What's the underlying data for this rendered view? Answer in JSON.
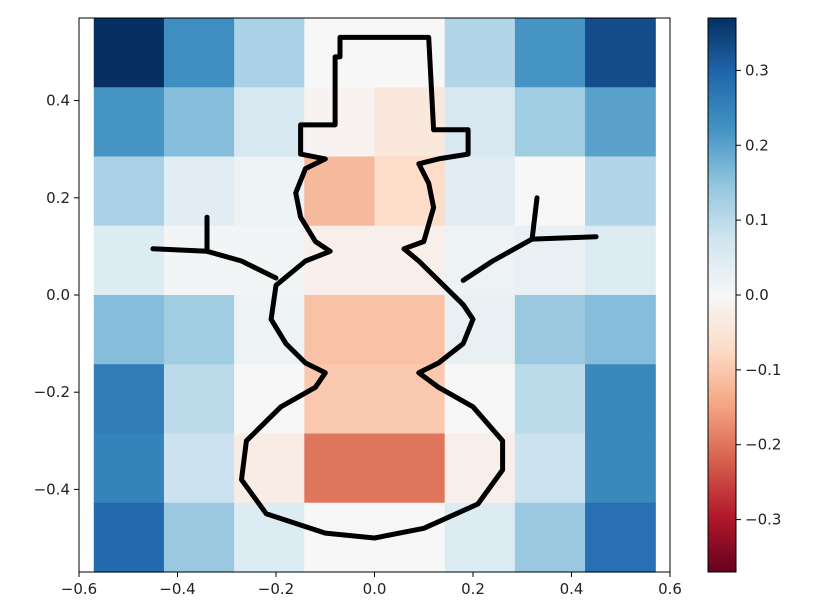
{
  "chart_data": {
    "type": "heatmap",
    "title": "",
    "xlabel": "",
    "ylabel": "",
    "xlim": [
      -0.6,
      0.6
    ],
    "ylim": [
      -0.57,
      0.57
    ],
    "x_ticks": [
      {
        "value": -0.6,
        "label": "−0.6"
      },
      {
        "value": -0.4,
        "label": "−0.4"
      },
      {
        "value": -0.2,
        "label": "−0.2"
      },
      {
        "value": 0.0,
        "label": "0.0"
      },
      {
        "value": 0.2,
        "label": "0.2"
      },
      {
        "value": 0.4,
        "label": "0.4"
      },
      {
        "value": 0.6,
        "label": "0.6"
      }
    ],
    "y_ticks": [
      {
        "value": 0.4,
        "label": "0.4"
      },
      {
        "value": 0.2,
        "label": "0.2"
      },
      {
        "value": 0.0,
        "label": "0.0"
      },
      {
        "value": -0.2,
        "label": "−0.2"
      },
      {
        "value": -0.4,
        "label": "−0.4"
      }
    ],
    "grid_extent": {
      "x": [
        -0.57,
        0.57
      ],
      "y": [
        -0.57,
        0.57
      ]
    },
    "grid_values": [
      [
        0.37,
        0.23,
        0.12,
        0.0,
        0.0,
        0.11,
        0.22,
        0.33
      ],
      [
        0.22,
        0.16,
        0.06,
        -0.01,
        -0.04,
        0.06,
        0.13,
        0.2
      ],
      [
        0.12,
        0.04,
        0.02,
        -0.12,
        -0.07,
        0.04,
        0.0,
        0.11
      ],
      [
        0.05,
        0.01,
        0.01,
        -0.02,
        -0.02,
        0.02,
        0.03,
        0.05
      ],
      [
        0.16,
        0.13,
        0.02,
        -0.11,
        -0.11,
        0.03,
        0.14,
        0.16
      ],
      [
        0.26,
        0.1,
        0.0,
        -0.1,
        -0.1,
        0.0,
        0.1,
        0.24
      ],
      [
        0.25,
        0.08,
        -0.03,
        -0.2,
        -0.2,
        -0.02,
        0.08,
        0.24
      ],
      [
        0.29,
        0.14,
        0.05,
        0.0,
        0.0,
        0.05,
        0.14,
        0.28
      ]
    ],
    "colormap": "RdBu",
    "colorbar": {
      "vmin": -0.37,
      "vmax": 0.37,
      "ticks": [
        {
          "value": 0.3,
          "label": "0.3"
        },
        {
          "value": 0.2,
          "label": "0.2"
        },
        {
          "value": 0.1,
          "label": "0.1"
        },
        {
          "value": 0.0,
          "label": "0.0"
        },
        {
          "value": -0.1,
          "label": "−0.1"
        },
        {
          "value": -0.2,
          "label": "−0.2"
        },
        {
          "value": -0.3,
          "label": "−0.3"
        }
      ]
    },
    "colormap_stops": [
      "#67001f",
      "#b2182b",
      "#d6604d",
      "#f4a582",
      "#fddbc7",
      "#f7f7f7",
      "#d1e5f0",
      "#92c5de",
      "#4393c3",
      "#2166ac",
      "#053061"
    ],
    "overlay": {
      "shape": "snowman outline",
      "color": "#000000",
      "points": [
        [
          -0.07,
          0.49
        ],
        [
          -0.07,
          0.53
        ],
        [
          0.11,
          0.53
        ],
        [
          0.12,
          0.34
        ],
        [
          0.19,
          0.34
        ],
        [
          0.19,
          0.29
        ],
        [
          0.13,
          0.28
        ],
        [
          0.09,
          0.27
        ],
        [
          0.11,
          0.23
        ],
        [
          0.12,
          0.18
        ],
        [
          0.1,
          0.11
        ],
        [
          0.06,
          0.095
        ],
        [
          0.09,
          0.07
        ],
        [
          0.13,
          0.03
        ],
        [
          0.18,
          -0.02
        ],
        [
          0.2,
          -0.05
        ],
        [
          0.18,
          -0.1
        ],
        [
          0.13,
          -0.14
        ],
        [
          0.09,
          -0.16
        ],
        [
          0.13,
          -0.19
        ],
        [
          0.2,
          -0.23
        ],
        [
          0.26,
          -0.3
        ],
        [
          0.26,
          -0.36
        ],
        [
          0.21,
          -0.43
        ],
        [
          0.1,
          -0.48
        ],
        [
          0.0,
          -0.5
        ],
        [
          -0.1,
          -0.49
        ],
        [
          -0.22,
          -0.45
        ],
        [
          -0.27,
          -0.38
        ],
        [
          -0.26,
          -0.3
        ],
        [
          -0.19,
          -0.23
        ],
        [
          -0.12,
          -0.19
        ],
        [
          -0.1,
          -0.16
        ],
        [
          -0.14,
          -0.14
        ],
        [
          -0.18,
          -0.1
        ],
        [
          -0.21,
          -0.05
        ],
        [
          -0.2,
          0.02
        ],
        [
          -0.14,
          0.07
        ],
        [
          -0.09,
          0.09
        ],
        [
          -0.12,
          0.11
        ],
        [
          -0.15,
          0.16
        ],
        [
          -0.16,
          0.21
        ],
        [
          -0.14,
          0.26
        ],
        [
          -0.1,
          0.28
        ],
        [
          -0.15,
          0.29
        ],
        [
          -0.15,
          0.35
        ],
        [
          -0.08,
          0.35
        ],
        [
          -0.08,
          0.49
        ]
      ],
      "left_arm": [
        [
          -0.2,
          0.035
        ],
        [
          -0.27,
          0.07
        ],
        [
          -0.34,
          0.09
        ],
        [
          -0.45,
          0.095
        ]
      ],
      "left_twig": [
        [
          -0.34,
          0.09
        ],
        [
          -0.34,
          0.16
        ]
      ],
      "right_arm": [
        [
          0.18,
          0.03
        ],
        [
          0.24,
          0.07
        ],
        [
          0.32,
          0.115
        ],
        [
          0.45,
          0.12
        ]
      ],
      "right_twig": [
        [
          0.32,
          0.115
        ],
        [
          0.33,
          0.2
        ]
      ]
    }
  }
}
